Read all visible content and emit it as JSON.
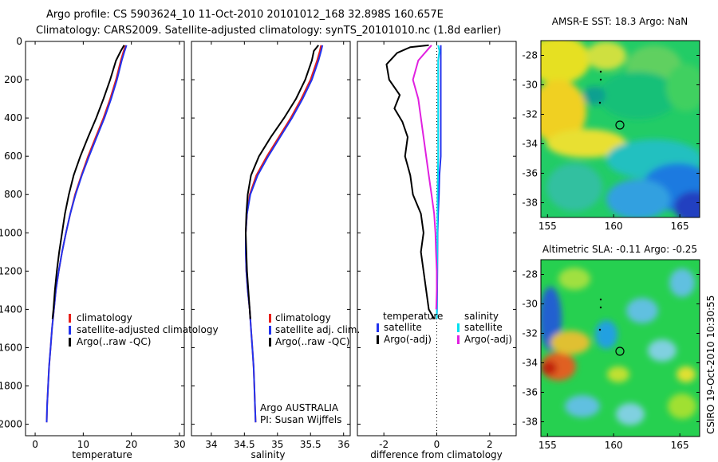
{
  "header": {
    "line1": "Argo profile: CS 5903624_10 11-Oct-2010 20101012_168 32.898S 160.657E",
    "line2": "Climatology: CARS2009. Satellite-adjusted climatology: synTS_20101010.nc (1.8d earlier)"
  },
  "credits": {
    "argo_org": "Argo AUSTRALIA",
    "pi": "PI: Susan Wijffels",
    "stamp": "CSIRO 19-Oct-2010 10:30:55"
  },
  "colors": {
    "climatology": "#e8201a",
    "satellite": "#2233ee",
    "argo": "#000000",
    "satellite_diff": "#00e0f0",
    "argo_sal_diff": "#e020e0"
  },
  "chart_data": [
    {
      "type": "line",
      "panel": "temperature",
      "xlabel": "temperature",
      "ylabel": "",
      "xlim": [
        -2,
        31
      ],
      "ylim": [
        2060,
        0
      ],
      "y_reversed": true,
      "xticks": [
        0,
        10,
        20,
        30
      ],
      "yticks": [
        0,
        200,
        400,
        600,
        800,
        1000,
        1200,
        1400,
        1600,
        1800,
        2000
      ],
      "legend": [
        "climatology",
        "satellite-adjusted climatology",
        "Argo(..raw -QC)"
      ],
      "series": [
        {
          "name": "climatology",
          "color": "#e8201a",
          "points": [
            [
              18.8,
              20
            ],
            [
              18.4,
              50
            ],
            [
              17.8,
              100
            ],
            [
              16.8,
              200
            ],
            [
              15.6,
              300
            ],
            [
              14.2,
              400
            ],
            [
              12.6,
              500
            ],
            [
              11.0,
              600
            ],
            [
              9.6,
              700
            ],
            [
              8.3,
              800
            ],
            [
              7.3,
              900
            ],
            [
              6.4,
              1000
            ],
            [
              5.6,
              1100
            ],
            [
              4.9,
              1200
            ],
            [
              4.3,
              1300
            ],
            [
              3.9,
              1400
            ],
            [
              3.5,
              1500
            ],
            [
              3.2,
              1600
            ],
            [
              2.9,
              1700
            ],
            [
              2.7,
              1800
            ],
            [
              2.5,
              1900
            ],
            [
              2.4,
              1990
            ]
          ]
        },
        {
          "name": "satellite-adjusted climatology",
          "color": "#2233ee",
          "points": [
            [
              19.0,
              20
            ],
            [
              18.6,
              50
            ],
            [
              18.0,
              100
            ],
            [
              17.0,
              200
            ],
            [
              15.8,
              300
            ],
            [
              14.4,
              400
            ],
            [
              12.8,
              500
            ],
            [
              11.2,
              600
            ],
            [
              9.7,
              700
            ],
            [
              8.4,
              800
            ],
            [
              7.3,
              900
            ],
            [
              6.4,
              1000
            ],
            [
              5.6,
              1100
            ],
            [
              4.9,
              1200
            ],
            [
              4.3,
              1300
            ],
            [
              3.9,
              1400
            ],
            [
              3.5,
              1500
            ],
            [
              3.2,
              1600
            ],
            [
              2.9,
              1700
            ],
            [
              2.7,
              1800
            ],
            [
              2.5,
              1900
            ],
            [
              2.4,
              1990
            ]
          ]
        },
        {
          "name": "Argo(..raw -QC)",
          "color": "#000000",
          "points": [
            [
              18.5,
              20
            ],
            [
              17.8,
              50
            ],
            [
              16.8,
              100
            ],
            [
              15.6,
              200
            ],
            [
              14.2,
              300
            ],
            [
              12.7,
              400
            ],
            [
              11.0,
              500
            ],
            [
              9.4,
              600
            ],
            [
              8.0,
              700
            ],
            [
              7.0,
              800
            ],
            [
              6.2,
              900
            ],
            [
              5.6,
              1000
            ],
            [
              5.0,
              1100
            ],
            [
              4.5,
              1200
            ],
            [
              4.1,
              1300
            ],
            [
              3.8,
              1400
            ],
            [
              3.6,
              1450
            ]
          ]
        }
      ]
    },
    {
      "type": "line",
      "panel": "salinity",
      "xlabel": "salinity",
      "ylabel": "",
      "xlim": [
        33.7,
        36.1
      ],
      "ylim": [
        2060,
        0
      ],
      "y_reversed": true,
      "xticks": [
        34,
        34.5,
        35,
        35.5,
        36
      ],
      "legend": [
        "climatology",
        "satellite adj. clim.",
        "Argo(..raw -QC)"
      ],
      "series": [
        {
          "name": "climatology",
          "color": "#e8201a",
          "points": [
            [
              35.66,
              20
            ],
            [
              35.64,
              50
            ],
            [
              35.6,
              100
            ],
            [
              35.5,
              200
            ],
            [
              35.36,
              300
            ],
            [
              35.2,
              400
            ],
            [
              35.02,
              500
            ],
            [
              34.84,
              600
            ],
            [
              34.68,
              700
            ],
            [
              34.58,
              800
            ],
            [
              34.54,
              900
            ],
            [
              34.52,
              1000
            ],
            [
              34.52,
              1100
            ],
            [
              34.53,
              1200
            ],
            [
              34.55,
              1300
            ],
            [
              34.58,
              1400
            ],
            [
              34.6,
              1500
            ],
            [
              34.62,
              1600
            ],
            [
              34.64,
              1700
            ],
            [
              34.65,
              1800
            ],
            [
              34.66,
              1900
            ],
            [
              34.67,
              1990
            ]
          ]
        },
        {
          "name": "satellite adj. clim.",
          "color": "#2233ee",
          "points": [
            [
              35.68,
              20
            ],
            [
              35.66,
              50
            ],
            [
              35.62,
              100
            ],
            [
              35.52,
              200
            ],
            [
              35.38,
              300
            ],
            [
              35.22,
              400
            ],
            [
              35.04,
              500
            ],
            [
              34.86,
              600
            ],
            [
              34.7,
              700
            ],
            [
              34.59,
              800
            ],
            [
              34.54,
              900
            ],
            [
              34.52,
              1000
            ],
            [
              34.52,
              1100
            ],
            [
              34.53,
              1200
            ],
            [
              34.55,
              1300
            ],
            [
              34.58,
              1400
            ],
            [
              34.6,
              1500
            ],
            [
              34.62,
              1600
            ],
            [
              34.64,
              1700
            ],
            [
              34.65,
              1800
            ],
            [
              34.66,
              1900
            ],
            [
              34.67,
              1990
            ]
          ]
        },
        {
          "name": "Argo(..raw -QC)",
          "color": "#000000",
          "points": [
            [
              35.62,
              20
            ],
            [
              35.55,
              50
            ],
            [
              35.52,
              100
            ],
            [
              35.42,
              200
            ],
            [
              35.28,
              300
            ],
            [
              35.1,
              400
            ],
            [
              34.9,
              500
            ],
            [
              34.72,
              600
            ],
            [
              34.6,
              700
            ],
            [
              34.55,
              800
            ],
            [
              34.53,
              900
            ],
            [
              34.52,
              1000
            ],
            [
              34.53,
              1100
            ],
            [
              34.54,
              1200
            ],
            [
              34.56,
              1300
            ],
            [
              34.58,
              1400
            ],
            [
              34.59,
              1450
            ]
          ]
        }
      ]
    },
    {
      "type": "line",
      "panel": "difference",
      "xlabel": "difference from climatology",
      "ylabel": "",
      "xlim": [
        -3,
        3
      ],
      "ylim": [
        2060,
        0
      ],
      "y_reversed": true,
      "xticks": [
        -2,
        0,
        2
      ],
      "zero_line": "dotted",
      "legend_titles": [
        "temperature",
        "salinity"
      ],
      "legend": [
        "satellite",
        "Argo(-adj)",
        "satellite",
        "Argo(-adj)"
      ],
      "series": [
        {
          "name": "satellite",
          "variable": "temperature",
          "color": "#2233ee",
          "points": [
            [
              0.15,
              20
            ],
            [
              0.15,
              50
            ],
            [
              0.15,
              100
            ],
            [
              0.15,
              200
            ],
            [
              0.15,
              300
            ],
            [
              0.15,
              400
            ],
            [
              0.15,
              500
            ],
            [
              0.15,
              600
            ],
            [
              0.1,
              700
            ],
            [
              0.08,
              800
            ],
            [
              0.05,
              900
            ],
            [
              0.03,
              1000
            ],
            [
              0.02,
              1200
            ],
            [
              0.01,
              1400
            ],
            [
              0,
              1450
            ]
          ]
        },
        {
          "name": "Argo(-adj)",
          "variable": "temperature",
          "color": "#000000",
          "points": [
            [
              -0.3,
              20
            ],
            [
              -1.0,
              30
            ],
            [
              -1.5,
              60
            ],
            [
              -1.9,
              120
            ],
            [
              -1.8,
              200
            ],
            [
              -1.4,
              280
            ],
            [
              -1.6,
              350
            ],
            [
              -1.3,
              420
            ],
            [
              -1.1,
              500
            ],
            [
              -1.2,
              600
            ],
            [
              -1.0,
              700
            ],
            [
              -0.9,
              800
            ],
            [
              -0.6,
              900
            ],
            [
              -0.5,
              1000
            ],
            [
              -0.6,
              1100
            ],
            [
              -0.5,
              1200
            ],
            [
              -0.4,
              1300
            ],
            [
              -0.3,
              1400
            ],
            [
              -0.1,
              1450
            ]
          ]
        },
        {
          "name": "satellite",
          "variable": "salinity",
          "color": "#00e0f0",
          "points": [
            [
              0.05,
              20
            ],
            [
              0.1,
              50
            ],
            [
              0.05,
              100
            ],
            [
              0.05,
              200
            ],
            [
              0.05,
              400
            ],
            [
              0.05,
              600
            ],
            [
              0.03,
              800
            ],
            [
              0.02,
              1000
            ],
            [
              0.01,
              1200
            ],
            [
              0,
              1400
            ],
            [
              0,
              1450
            ]
          ]
        },
        {
          "name": "Argo(-adj)",
          "variable": "salinity",
          "color": "#e020e0",
          "points": [
            [
              -0.2,
              20
            ],
            [
              -0.7,
              100
            ],
            [
              -0.9,
              200
            ],
            [
              -0.7,
              300
            ],
            [
              -0.6,
              400
            ],
            [
              -0.5,
              500
            ],
            [
              -0.4,
              600
            ],
            [
              -0.3,
              700
            ],
            [
              -0.2,
              800
            ],
            [
              -0.1,
              900
            ],
            [
              -0.05,
              1000
            ],
            [
              -0.03,
              1100
            ],
            [
              0,
              1200
            ],
            [
              0,
              1300
            ],
            [
              -0.02,
              1400
            ]
          ]
        }
      ]
    },
    {
      "type": "heatmap",
      "panel": "sst-map",
      "title": "AMSR-E SST: 18.3 Argo: NaN",
      "xlim": [
        154.5,
        166.5
      ],
      "ylim": [
        -39,
        -27
      ],
      "xticks": [
        155,
        160,
        165
      ],
      "yticks": [
        -28,
        -30,
        -32,
        -34,
        -36,
        -38
      ],
      "float_position": [
        160.657,
        -32.898
      ],
      "track_points": [
        [
          159.0,
          -29.6
        ],
        [
          159.0,
          -30.1
        ],
        [
          158.9,
          -31.5
        ]
      ]
    },
    {
      "type": "heatmap",
      "panel": "sla-map",
      "title": "Altimetric SLA: -0.11 Argo: -0.25",
      "xlim": [
        154.5,
        166.5
      ],
      "ylim": [
        -39,
        -27
      ],
      "xticks": [
        155,
        160,
        165
      ],
      "yticks": [
        -28,
        -30,
        -32,
        -34,
        -36,
        -38
      ],
      "float_position": [
        160.657,
        -32.898
      ],
      "track_points": [
        [
          159.0,
          -29.6
        ],
        [
          159.0,
          -30.1
        ],
        [
          158.9,
          -31.5
        ]
      ]
    }
  ]
}
